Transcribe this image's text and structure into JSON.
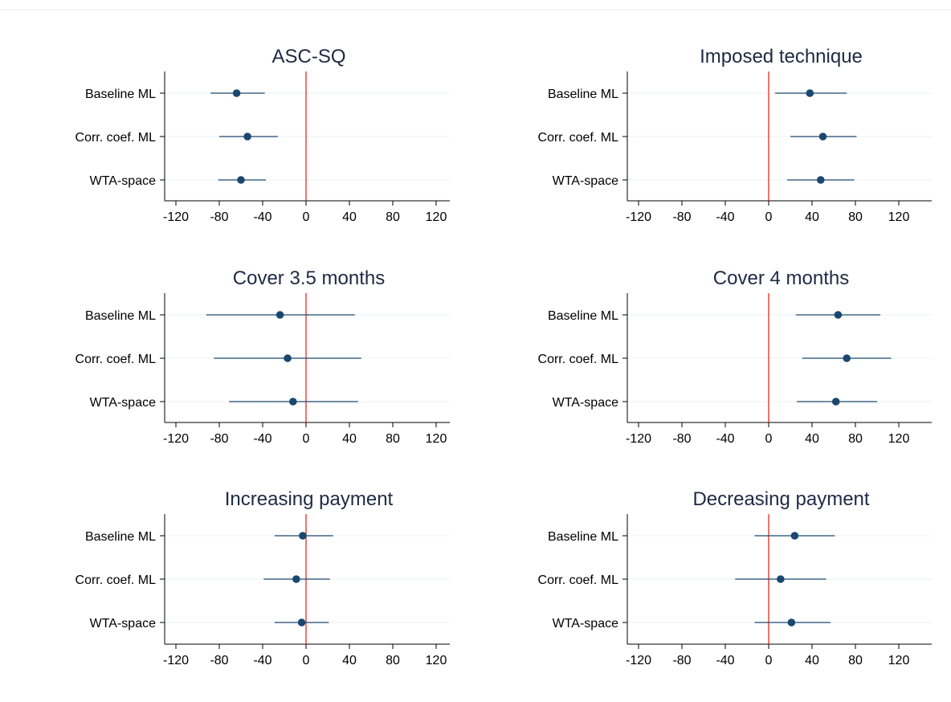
{
  "colors": {
    "marker": "#1a476f",
    "ci_line": "#1a476f",
    "reference_line": "#e8170e",
    "axis": "#000000",
    "grid": "#eaf2f3",
    "title": "#1e2a44"
  },
  "chart_data": [
    {
      "type": "scatter",
      "title": "ASC-SQ",
      "categories": [
        "Baseline ML",
        "Corr. coef. ML",
        "WTA-space"
      ],
      "estimates": [
        -64,
        -54,
        -60
      ],
      "ci_low": [
        -88,
        -80,
        -81
      ],
      "ci_high": [
        -38,
        -26,
        -37
      ],
      "x_ticks": [
        "-120",
        "-80",
        "-40",
        "0",
        "40",
        "80",
        "120"
      ],
      "xlim": [
        -130,
        150
      ],
      "reference_line": 0,
      "grid": true
    },
    {
      "type": "scatter",
      "title": "Imposed technique",
      "categories": [
        "Baseline ML",
        "Corr. coef. ML",
        "WTA-space"
      ],
      "estimates": [
        38,
        50,
        48
      ],
      "ci_low": [
        6,
        20,
        17
      ],
      "ci_high": [
        72,
        81,
        79
      ],
      "x_ticks": [
        "-120",
        "-80",
        "-40",
        "0",
        "40",
        "80",
        "120"
      ],
      "xlim": [
        -130,
        150
      ],
      "reference_line": 0,
      "grid": true
    },
    {
      "type": "scatter",
      "title": "Cover 3.5 months",
      "categories": [
        "Baseline ML",
        "Corr. coef. ML",
        "WTA-space"
      ],
      "estimates": [
        -24,
        -17,
        -12
      ],
      "ci_low": [
        -92,
        -85,
        -71
      ],
      "ci_high": [
        45,
        51,
        48
      ],
      "x_ticks": [
        "-120",
        "-80",
        "-40",
        "0",
        "40",
        "80",
        "120"
      ],
      "xlim": [
        -130,
        150
      ],
      "reference_line": 0,
      "grid": true
    },
    {
      "type": "scatter",
      "title": "Cover 4 months",
      "categories": [
        "Baseline ML",
        "Corr. coef. ML",
        "WTA-space"
      ],
      "estimates": [
        64,
        72,
        62
      ],
      "ci_low": [
        25,
        31,
        26
      ],
      "ci_high": [
        103,
        113,
        100
      ],
      "x_ticks": [
        "-120",
        "-80",
        "-40",
        "0",
        "40",
        "80",
        "120"
      ],
      "xlim": [
        -130,
        150
      ],
      "reference_line": 0,
      "grid": true
    },
    {
      "type": "scatter",
      "title": "Increasing payment",
      "categories": [
        "Baseline ML",
        "Corr. coef. ML",
        "WTA-space"
      ],
      "estimates": [
        -3,
        -9,
        -4
      ],
      "ci_low": [
        -29,
        -39,
        -29
      ],
      "ci_high": [
        25,
        22,
        21
      ],
      "x_ticks": [
        "-120",
        "-80",
        "-40",
        "0",
        "40",
        "80",
        "120"
      ],
      "xlim": [
        -130,
        150
      ],
      "reference_line": 0,
      "grid": true
    },
    {
      "type": "scatter",
      "title": "Decreasing payment",
      "categories": [
        "Baseline ML",
        "Corr. coef. ML",
        "WTA-space"
      ],
      "estimates": [
        24,
        11,
        21
      ],
      "ci_low": [
        -13,
        -31,
        -13
      ],
      "ci_high": [
        61,
        53,
        57
      ],
      "x_ticks": [
        "-120",
        "-80",
        "-40",
        "0",
        "40",
        "80",
        "120"
      ],
      "xlim": [
        -130,
        150
      ],
      "reference_line": 0,
      "grid": true
    }
  ]
}
